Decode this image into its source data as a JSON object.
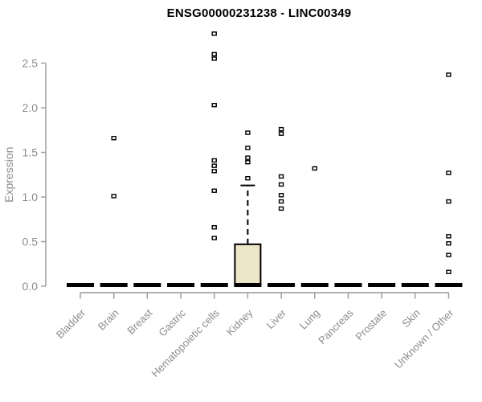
{
  "title": "ENSG00000231238 - LINC00349",
  "y_axis": {
    "label": "Expression",
    "tick_labels": [
      "0.0",
      "0.5",
      "1.0",
      "1.5",
      "2.0",
      "2.5"
    ],
    "tick_values": [
      0,
      0.5,
      1.0,
      1.5,
      2.0,
      2.5
    ]
  },
  "colors": {
    "axis_line": "#999999",
    "tick_text": "#8c8c8c",
    "title_text": "#000000",
    "box_fill": "#ede5c8",
    "box_stroke": "#000000",
    "marker": "#000000",
    "background": "#ffffff"
  },
  "chart_data": {
    "type": "boxplot",
    "title": "ENSG00000231238 - LINC00349",
    "xlabel": "",
    "ylabel": "Expression",
    "ylim": [
      0,
      2.9
    ],
    "grid": false,
    "legend": "none",
    "categories": [
      "Bladder",
      "Brain",
      "Breast",
      "Gastric",
      "Hematopoietic cells",
      "Kidney",
      "Liver",
      "Lung",
      "Pancreas",
      "Prostate",
      "Skin",
      "Unknown / Other"
    ],
    "series": [
      {
        "name": "Bladder",
        "q1": 0,
        "median": 0,
        "q3": 0,
        "whisker_low": 0,
        "whisker_high": 0,
        "outliers": []
      },
      {
        "name": "Brain",
        "q1": 0,
        "median": 0,
        "q3": 0,
        "whisker_low": 0,
        "whisker_high": 0,
        "outliers": [
          1.01,
          1.66
        ]
      },
      {
        "name": "Breast",
        "q1": 0,
        "median": 0,
        "q3": 0,
        "whisker_low": 0,
        "whisker_high": 0,
        "outliers": []
      },
      {
        "name": "Gastric",
        "q1": 0,
        "median": 0,
        "q3": 0,
        "whisker_low": 0,
        "whisker_high": 0,
        "outliers": []
      },
      {
        "name": "Hematopoietic cells",
        "q1": 0,
        "median": 0,
        "q3": 0,
        "whisker_low": 0,
        "whisker_high": 0,
        "outliers": [
          0.54,
          0.66,
          1.07,
          1.29,
          1.35,
          1.41,
          2.03,
          2.55,
          2.6,
          2.83
        ]
      },
      {
        "name": "Kidney",
        "q1": 0,
        "median": 0.02,
        "q3": 0.47,
        "whisker_low": 0,
        "whisker_high": 1.13,
        "outliers": [
          1.21,
          1.39,
          1.44,
          1.55,
          1.72
        ]
      },
      {
        "name": "Liver",
        "q1": 0,
        "median": 0,
        "q3": 0,
        "whisker_low": 0,
        "whisker_high": 0,
        "outliers": [
          0.87,
          0.95,
          1.02,
          1.14,
          1.23,
          1.71,
          1.76
        ]
      },
      {
        "name": "Lung",
        "q1": 0,
        "median": 0,
        "q3": 0,
        "whisker_low": 0,
        "whisker_high": 0,
        "outliers": [
          1.32
        ]
      },
      {
        "name": "Pancreas",
        "q1": 0,
        "median": 0,
        "q3": 0,
        "whisker_low": 0,
        "whisker_high": 0,
        "outliers": []
      },
      {
        "name": "Prostate",
        "q1": 0,
        "median": 0,
        "q3": 0,
        "whisker_low": 0,
        "whisker_high": 0,
        "outliers": []
      },
      {
        "name": "Skin",
        "q1": 0,
        "median": 0,
        "q3": 0,
        "whisker_low": 0,
        "whisker_high": 0,
        "outliers": []
      },
      {
        "name": "Unknown / Other",
        "q1": 0,
        "median": 0,
        "q3": 0,
        "whisker_low": 0,
        "whisker_high": 0,
        "outliers": [
          0.16,
          0.35,
          0.48,
          0.56,
          0.95,
          1.27,
          2.37
        ]
      }
    ]
  }
}
